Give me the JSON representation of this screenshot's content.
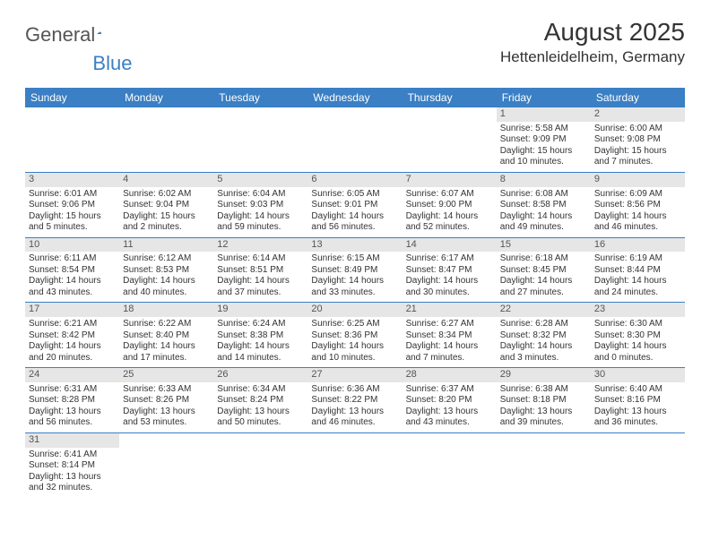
{
  "brand": {
    "word1": "General",
    "word2": "Blue"
  },
  "title": "August 2025",
  "location": "Hettenleidelheim, Germany",
  "colors": {
    "accent": "#3b7fc4",
    "daynum_bg": "#e6e6e6",
    "text": "#333333",
    "logo_gray": "#555555"
  },
  "weekdays": [
    "Sunday",
    "Monday",
    "Tuesday",
    "Wednesday",
    "Thursday",
    "Friday",
    "Saturday"
  ],
  "weeks": [
    [
      null,
      null,
      null,
      null,
      null,
      {
        "d": "1",
        "sr": "Sunrise: 5:58 AM",
        "ss": "Sunset: 9:09 PM",
        "dl": "Daylight: 15 hours and 10 minutes."
      },
      {
        "d": "2",
        "sr": "Sunrise: 6:00 AM",
        "ss": "Sunset: 9:08 PM",
        "dl": "Daylight: 15 hours and 7 minutes."
      }
    ],
    [
      {
        "d": "3",
        "sr": "Sunrise: 6:01 AM",
        "ss": "Sunset: 9:06 PM",
        "dl": "Daylight: 15 hours and 5 minutes."
      },
      {
        "d": "4",
        "sr": "Sunrise: 6:02 AM",
        "ss": "Sunset: 9:04 PM",
        "dl": "Daylight: 15 hours and 2 minutes."
      },
      {
        "d": "5",
        "sr": "Sunrise: 6:04 AM",
        "ss": "Sunset: 9:03 PM",
        "dl": "Daylight: 14 hours and 59 minutes."
      },
      {
        "d": "6",
        "sr": "Sunrise: 6:05 AM",
        "ss": "Sunset: 9:01 PM",
        "dl": "Daylight: 14 hours and 56 minutes."
      },
      {
        "d": "7",
        "sr": "Sunrise: 6:07 AM",
        "ss": "Sunset: 9:00 PM",
        "dl": "Daylight: 14 hours and 52 minutes."
      },
      {
        "d": "8",
        "sr": "Sunrise: 6:08 AM",
        "ss": "Sunset: 8:58 PM",
        "dl": "Daylight: 14 hours and 49 minutes."
      },
      {
        "d": "9",
        "sr": "Sunrise: 6:09 AM",
        "ss": "Sunset: 8:56 PM",
        "dl": "Daylight: 14 hours and 46 minutes."
      }
    ],
    [
      {
        "d": "10",
        "sr": "Sunrise: 6:11 AM",
        "ss": "Sunset: 8:54 PM",
        "dl": "Daylight: 14 hours and 43 minutes."
      },
      {
        "d": "11",
        "sr": "Sunrise: 6:12 AM",
        "ss": "Sunset: 8:53 PM",
        "dl": "Daylight: 14 hours and 40 minutes."
      },
      {
        "d": "12",
        "sr": "Sunrise: 6:14 AM",
        "ss": "Sunset: 8:51 PM",
        "dl": "Daylight: 14 hours and 37 minutes."
      },
      {
        "d": "13",
        "sr": "Sunrise: 6:15 AM",
        "ss": "Sunset: 8:49 PM",
        "dl": "Daylight: 14 hours and 33 minutes."
      },
      {
        "d": "14",
        "sr": "Sunrise: 6:17 AM",
        "ss": "Sunset: 8:47 PM",
        "dl": "Daylight: 14 hours and 30 minutes."
      },
      {
        "d": "15",
        "sr": "Sunrise: 6:18 AM",
        "ss": "Sunset: 8:45 PM",
        "dl": "Daylight: 14 hours and 27 minutes."
      },
      {
        "d": "16",
        "sr": "Sunrise: 6:19 AM",
        "ss": "Sunset: 8:44 PM",
        "dl": "Daylight: 14 hours and 24 minutes."
      }
    ],
    [
      {
        "d": "17",
        "sr": "Sunrise: 6:21 AM",
        "ss": "Sunset: 8:42 PM",
        "dl": "Daylight: 14 hours and 20 minutes."
      },
      {
        "d": "18",
        "sr": "Sunrise: 6:22 AM",
        "ss": "Sunset: 8:40 PM",
        "dl": "Daylight: 14 hours and 17 minutes."
      },
      {
        "d": "19",
        "sr": "Sunrise: 6:24 AM",
        "ss": "Sunset: 8:38 PM",
        "dl": "Daylight: 14 hours and 14 minutes."
      },
      {
        "d": "20",
        "sr": "Sunrise: 6:25 AM",
        "ss": "Sunset: 8:36 PM",
        "dl": "Daylight: 14 hours and 10 minutes."
      },
      {
        "d": "21",
        "sr": "Sunrise: 6:27 AM",
        "ss": "Sunset: 8:34 PM",
        "dl": "Daylight: 14 hours and 7 minutes."
      },
      {
        "d": "22",
        "sr": "Sunrise: 6:28 AM",
        "ss": "Sunset: 8:32 PM",
        "dl": "Daylight: 14 hours and 3 minutes."
      },
      {
        "d": "23",
        "sr": "Sunrise: 6:30 AM",
        "ss": "Sunset: 8:30 PM",
        "dl": "Daylight: 14 hours and 0 minutes."
      }
    ],
    [
      {
        "d": "24",
        "sr": "Sunrise: 6:31 AM",
        "ss": "Sunset: 8:28 PM",
        "dl": "Daylight: 13 hours and 56 minutes."
      },
      {
        "d": "25",
        "sr": "Sunrise: 6:33 AM",
        "ss": "Sunset: 8:26 PM",
        "dl": "Daylight: 13 hours and 53 minutes."
      },
      {
        "d": "26",
        "sr": "Sunrise: 6:34 AM",
        "ss": "Sunset: 8:24 PM",
        "dl": "Daylight: 13 hours and 50 minutes."
      },
      {
        "d": "27",
        "sr": "Sunrise: 6:36 AM",
        "ss": "Sunset: 8:22 PM",
        "dl": "Daylight: 13 hours and 46 minutes."
      },
      {
        "d": "28",
        "sr": "Sunrise: 6:37 AM",
        "ss": "Sunset: 8:20 PM",
        "dl": "Daylight: 13 hours and 43 minutes."
      },
      {
        "d": "29",
        "sr": "Sunrise: 6:38 AM",
        "ss": "Sunset: 8:18 PM",
        "dl": "Daylight: 13 hours and 39 minutes."
      },
      {
        "d": "30",
        "sr": "Sunrise: 6:40 AM",
        "ss": "Sunset: 8:16 PM",
        "dl": "Daylight: 13 hours and 36 minutes."
      }
    ],
    [
      {
        "d": "31",
        "sr": "Sunrise: 6:41 AM",
        "ss": "Sunset: 8:14 PM",
        "dl": "Daylight: 13 hours and 32 minutes."
      },
      null,
      null,
      null,
      null,
      null,
      null
    ]
  ]
}
